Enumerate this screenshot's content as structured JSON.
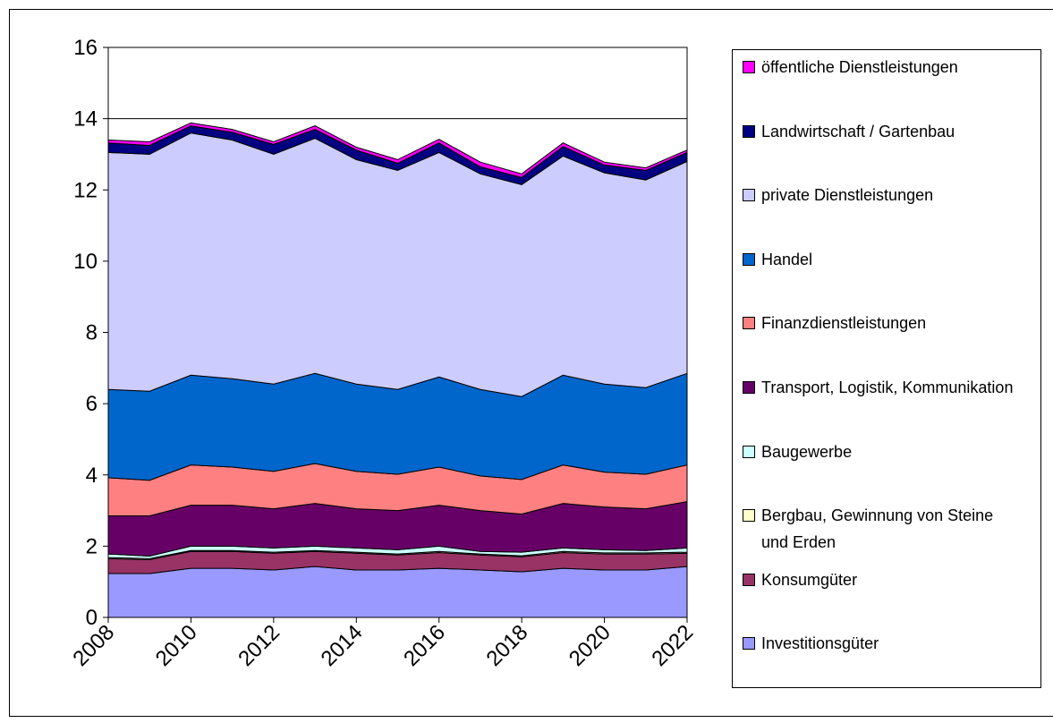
{
  "chart_data": {
    "type": "stacked_area",
    "x": [
      2008,
      2009,
      2010,
      2011,
      2012,
      2013,
      2014,
      2015,
      2016,
      2017,
      2018,
      2019,
      2020,
      2021,
      2022
    ],
    "xlim": [
      2008,
      2022
    ],
    "xticks": [
      2008,
      2010,
      2012,
      2014,
      2016,
      2018,
      2020,
      2022
    ],
    "ylim": [
      0,
      16
    ],
    "yticks": [
      0,
      2,
      4,
      6,
      8,
      10,
      12,
      14,
      16
    ],
    "grid": true,
    "series": [
      {
        "name": "Investitionsgüter",
        "color": "#9999ff",
        "values": [
          1.23,
          1.23,
          1.38,
          1.38,
          1.33,
          1.43,
          1.33,
          1.33,
          1.38,
          1.33,
          1.28,
          1.38,
          1.33,
          1.33,
          1.43
        ]
      },
      {
        "name": "Konsumgüter",
        "color": "#993366",
        "values": [
          0.42,
          0.39,
          0.47,
          0.47,
          0.47,
          0.42,
          0.47,
          0.42,
          0.44,
          0.42,
          0.42,
          0.44,
          0.45,
          0.45,
          0.37
        ]
      },
      {
        "name": "Bergbau, Gewinnung von Steine und Erden",
        "color": "#ffffcc",
        "values": [
          0.03,
          0.03,
          0.03,
          0.03,
          0.03,
          0.03,
          0.03,
          0.03,
          0.03,
          0.03,
          0.03,
          0.03,
          0.03,
          0.03,
          0.03
        ]
      },
      {
        "name": "Baugewerbe",
        "color": "#ccffff",
        "values": [
          0.1,
          0.07,
          0.12,
          0.12,
          0.12,
          0.12,
          0.12,
          0.12,
          0.15,
          0.07,
          0.1,
          0.1,
          0.09,
          0.07,
          0.12
        ]
      },
      {
        "name": "Transport, Logistik, Kommunikation",
        "color": "#660066",
        "values": [
          1.07,
          1.13,
          1.15,
          1.15,
          1.1,
          1.2,
          1.1,
          1.1,
          1.15,
          1.15,
          1.07,
          1.25,
          1.2,
          1.17,
          1.3
        ]
      },
      {
        "name": "Finanzdienstleistungen",
        "color": "#ff8080",
        "values": [
          1.07,
          1.0,
          1.13,
          1.07,
          1.05,
          1.12,
          1.05,
          1.02,
          1.07,
          0.97,
          0.97,
          1.08,
          0.98,
          0.97,
          1.03
        ]
      },
      {
        "name": "Handel",
        "color": "#0066cc",
        "values": [
          2.48,
          2.5,
          2.52,
          2.48,
          2.45,
          2.53,
          2.45,
          2.38,
          2.53,
          2.43,
          2.33,
          2.52,
          2.47,
          2.43,
          2.57
        ]
      },
      {
        "name": "private Dienstleistungen",
        "color": "#ccccff",
        "values": [
          6.65,
          6.65,
          6.8,
          6.7,
          6.45,
          6.6,
          6.3,
          6.15,
          6.3,
          6.05,
          5.95,
          6.15,
          5.93,
          5.83,
          5.95
        ]
      },
      {
        "name": "Landwirtschaft / Gartenbau",
        "color": "#000080",
        "values": [
          0.27,
          0.25,
          0.2,
          0.22,
          0.28,
          0.25,
          0.27,
          0.2,
          0.27,
          0.2,
          0.2,
          0.27,
          0.22,
          0.27,
          0.25
        ]
      },
      {
        "name": "öffentliche Dienstleistungen",
        "color": "#ff00ff",
        "values": [
          0.08,
          0.1,
          0.08,
          0.08,
          0.07,
          0.1,
          0.08,
          0.1,
          0.1,
          0.13,
          0.1,
          0.1,
          0.08,
          0.07,
          0.07
        ]
      }
    ]
  }
}
